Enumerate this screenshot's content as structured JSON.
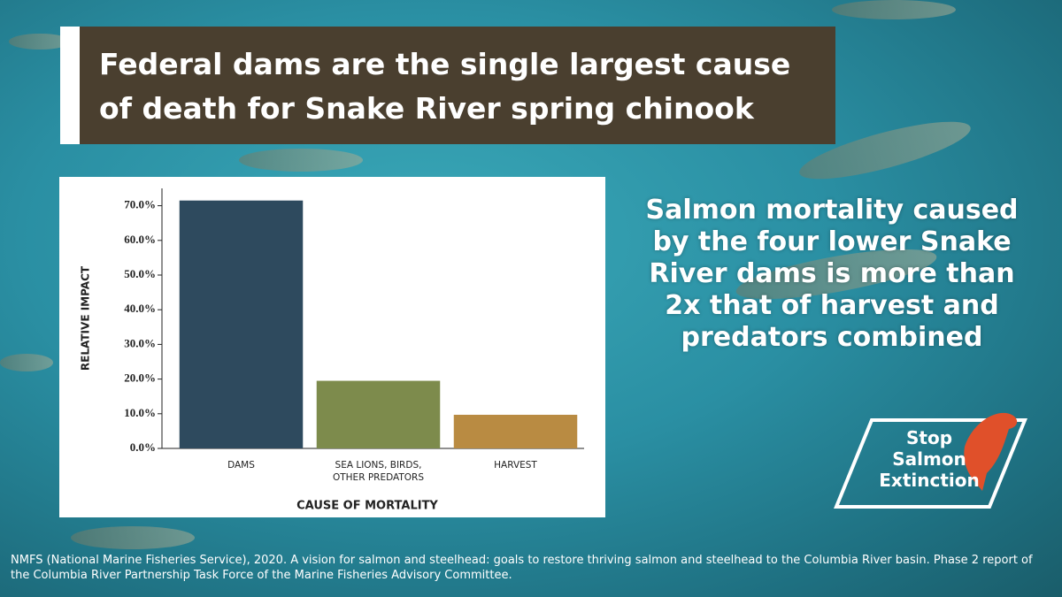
{
  "header": {
    "title": "Federal dams are the single largest cause of death for Snake River spring chinook"
  },
  "chart_data": {
    "type": "bar",
    "categories": [
      "DAMS",
      "SEA LIONS, BIRDS,\nOTHER PREDATORS",
      "HARVEST"
    ],
    "values": [
      71.5,
      19.5,
      9.7
    ],
    "colors": [
      "#2e4a5e",
      "#7d8b4c",
      "#b98b42"
    ],
    "ylim": [
      0,
      75
    ],
    "yticks": [
      {
        "value": 0,
        "label": "0.0%"
      },
      {
        "value": 10,
        "label": "10.0%"
      },
      {
        "value": 20,
        "label": "20.0%"
      },
      {
        "value": 30,
        "label": "30.0%"
      },
      {
        "value": 40,
        "label": "40.0%"
      },
      {
        "value": 50,
        "label": "50.0%"
      },
      {
        "value": 60,
        "label": "60.0%"
      },
      {
        "value": 70,
        "label": "70.0%"
      }
    ],
    "ylabel": "RELATIVE IMPACT",
    "xlabel": "CAUSE OF MORTALITY"
  },
  "callout": "Salmon mortality caused by the four lower Snake River dams is more than 2x that of harvest and predators combined",
  "logo": "Stop\nSalmon\nExtinction",
  "citation": "NMFS (National Marine Fisheries Service), 2020. A vision for salmon and steelhead: goals to restore thriving salmon and steelhead to the Columbia River basin. Phase 2 report of the Columbia River Partnership Task Force of the Marine Fisheries Advisory Committee."
}
